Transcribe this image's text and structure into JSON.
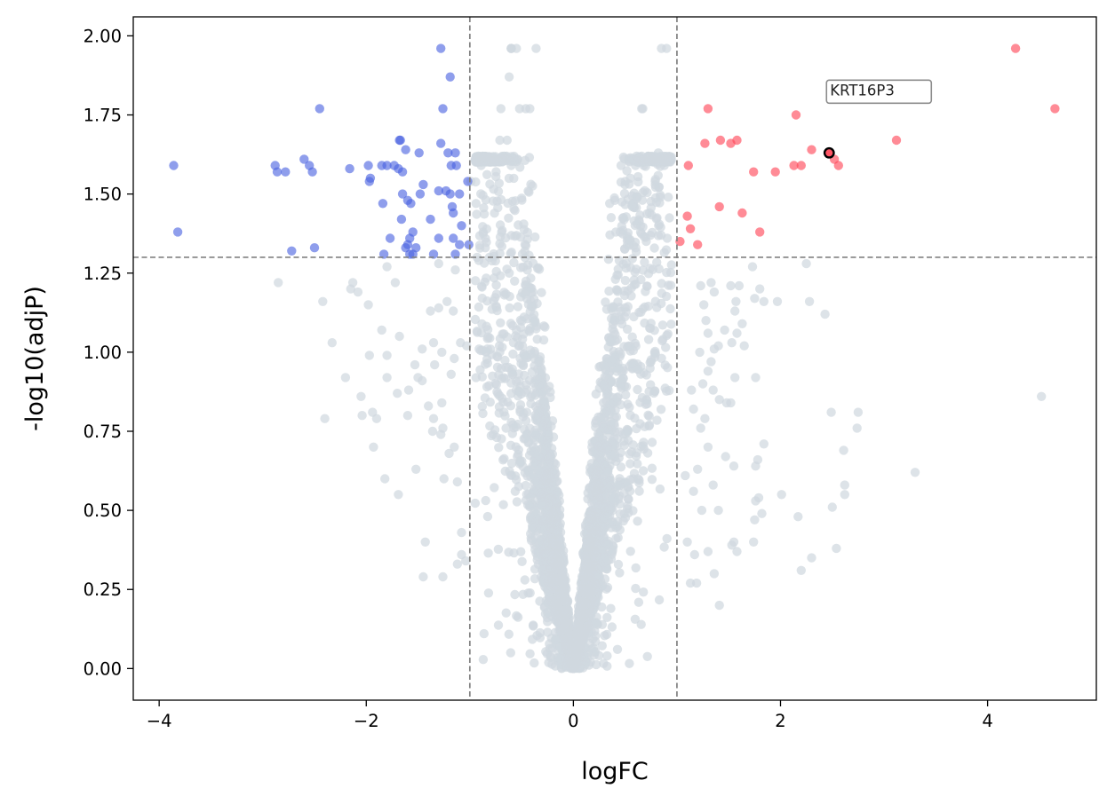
{
  "chart_data": {
    "type": "scatter",
    "title": "",
    "xlabel": "logFC",
    "ylabel": "-log10(adjP)",
    "xlim": [
      -4.25,
      5.05
    ],
    "ylim": [
      -0.1,
      2.06
    ],
    "xticks": [
      -4,
      -2,
      0,
      2,
      4
    ],
    "xtick_labels": [
      "−4",
      "−2",
      "0",
      "2",
      "4"
    ],
    "yticks": [
      0.0,
      0.25,
      0.5,
      0.75,
      1.0,
      1.25,
      1.5,
      1.75,
      2.0
    ],
    "ytick_labels": [
      "0.00",
      "0.25",
      "0.50",
      "0.75",
      "1.00",
      "1.25",
      "1.50",
      "1.75",
      "2.00"
    ],
    "thresholds": {
      "logfc": [
        -1,
        1
      ],
      "neg_log10_adjp": 1.3
    },
    "colors": {
      "up": "#ff4455",
      "down": "#4a63e0",
      "ns": "#d0d8df",
      "threshold_line": "#808080",
      "highlight_edge": "#000000"
    },
    "series": [
      {
        "name": "up",
        "points": [
          [
            4.27,
            1.96
          ],
          [
            4.65,
            1.77
          ],
          [
            1.3,
            1.77
          ],
          [
            2.15,
            1.75
          ],
          [
            3.12,
            1.67
          ],
          [
            1.42,
            1.67
          ],
          [
            1.58,
            1.67
          ],
          [
            1.27,
            1.66
          ],
          [
            1.52,
            1.66
          ],
          [
            2.3,
            1.64
          ],
          [
            2.52,
            1.61
          ],
          [
            2.56,
            1.59
          ],
          [
            1.11,
            1.59
          ],
          [
            2.13,
            1.59
          ],
          [
            2.2,
            1.59
          ],
          [
            1.74,
            1.57
          ],
          [
            1.95,
            1.57
          ],
          [
            1.41,
            1.46
          ],
          [
            1.63,
            1.44
          ],
          [
            1.1,
            1.43
          ],
          [
            1.13,
            1.39
          ],
          [
            1.8,
            1.38
          ],
          [
            1.03,
            1.35
          ],
          [
            1.2,
            1.34
          ]
        ]
      },
      {
        "name": "down",
        "points": [
          [
            -1.28,
            1.96
          ],
          [
            -1.19,
            1.87
          ],
          [
            -2.45,
            1.77
          ],
          [
            -1.26,
            1.77
          ],
          [
            -1.68,
            1.67
          ],
          [
            -1.67,
            1.67
          ],
          [
            -1.28,
            1.66
          ],
          [
            -1.21,
            1.63
          ],
          [
            -1.14,
            1.63
          ],
          [
            -1.62,
            1.64
          ],
          [
            -1.49,
            1.63
          ],
          [
            -2.6,
            1.61
          ],
          [
            -2.55,
            1.59
          ],
          [
            -3.86,
            1.59
          ],
          [
            -2.88,
            1.59
          ],
          [
            -1.85,
            1.59
          ],
          [
            -1.8,
            1.59
          ],
          [
            -1.73,
            1.59
          ],
          [
            -1.18,
            1.59
          ],
          [
            -1.13,
            1.59
          ],
          [
            -1.69,
            1.58
          ],
          [
            -2.16,
            1.58
          ],
          [
            -1.98,
            1.59
          ],
          [
            -2.86,
            1.57
          ],
          [
            -2.78,
            1.57
          ],
          [
            -2.52,
            1.57
          ],
          [
            -1.65,
            1.57
          ],
          [
            -1.96,
            1.55
          ],
          [
            -1.97,
            1.54
          ],
          [
            -1.45,
            1.53
          ],
          [
            -1.02,
            1.54
          ],
          [
            -1.23,
            1.51
          ],
          [
            -1.65,
            1.5
          ],
          [
            -1.19,
            1.5
          ],
          [
            -1.1,
            1.5
          ],
          [
            -1.3,
            1.51
          ],
          [
            -1.48,
            1.5
          ],
          [
            -1.6,
            1.48
          ],
          [
            -1.84,
            1.47
          ],
          [
            -1.57,
            1.47
          ],
          [
            -1.17,
            1.46
          ],
          [
            -1.16,
            1.44
          ],
          [
            -1.66,
            1.42
          ],
          [
            -1.38,
            1.42
          ],
          [
            -1.08,
            1.4
          ],
          [
            -1.55,
            1.38
          ],
          [
            -3.82,
            1.38
          ],
          [
            -1.77,
            1.36
          ],
          [
            -1.58,
            1.36
          ],
          [
            -1.3,
            1.36
          ],
          [
            -1.16,
            1.36
          ],
          [
            -1.1,
            1.34
          ],
          [
            -1.6,
            1.34
          ],
          [
            -1.01,
            1.34
          ],
          [
            -1.62,
            1.33
          ],
          [
            -2.5,
            1.33
          ],
          [
            -2.72,
            1.32
          ],
          [
            -1.55,
            1.31
          ],
          [
            -1.83,
            1.31
          ],
          [
            -1.35,
            1.31
          ],
          [
            -1.14,
            1.31
          ],
          [
            -1.58,
            1.31
          ],
          [
            -1.52,
            1.33
          ]
        ]
      },
      {
        "name": "ns",
        "generator": {
          "count": 4200,
          "x_range": [
            -1.0,
            1.0
          ],
          "seed": 7
        },
        "points": [
          [
            -0.55,
            1.96
          ],
          [
            -0.6,
            1.96
          ],
          [
            -0.6,
            1.96
          ],
          [
            -0.6,
            1.96
          ],
          [
            -0.36,
            1.96
          ],
          [
            -0.62,
            1.87
          ],
          [
            0.85,
            1.96
          ],
          [
            0.9,
            1.96
          ],
          [
            -0.7,
            1.77
          ],
          [
            -0.46,
            1.77
          ],
          [
            -0.42,
            1.77
          ],
          [
            -0.52,
            1.77
          ],
          [
            0.66,
            1.77
          ],
          [
            0.67,
            1.77
          ],
          [
            -0.71,
            1.67
          ],
          [
            -0.64,
            1.67
          ],
          [
            0.82,
            1.63
          ],
          [
            -0.6,
            1.59
          ],
          [
            -0.89,
            1.59
          ],
          [
            0.46,
            1.59
          ],
          [
            0.6,
            1.59
          ],
          [
            0.68,
            1.59
          ],
          [
            0.55,
            1.55
          ],
          [
            0.5,
            1.54
          ],
          [
            0.79,
            1.54
          ],
          [
            -0.99,
            1.54
          ],
          [
            -0.94,
            1.47
          ],
          [
            0.84,
            1.49
          ],
          [
            0.4,
            1.48
          ],
          [
            0.62,
            1.49
          ],
          [
            0.58,
            1.47
          ],
          [
            0.57,
            1.46
          ],
          [
            0.35,
            1.47
          ],
          [
            0.41,
            1.38
          ],
          [
            -0.93,
            1.3
          ],
          [
            -0.81,
            1.3
          ],
          [
            -0.85,
            1.33
          ],
          [
            -1.3,
            1.28
          ],
          [
            -1.22,
            1.16
          ],
          [
            -1.3,
            1.14
          ],
          [
            -1.16,
            1.13
          ],
          [
            -1.14,
            1.26
          ],
          [
            -1.38,
            1.13
          ],
          [
            -1.35,
            1.03
          ],
          [
            -1.46,
            1.01
          ],
          [
            -1.53,
            0.96
          ],
          [
            -1.09,
            1.03
          ],
          [
            -1.15,
            0.98
          ],
          [
            -1.03,
            1.02
          ],
          [
            -1.27,
            1.0
          ],
          [
            -1.34,
            0.96
          ],
          [
            -1.46,
            0.91
          ],
          [
            -1.5,
            0.92
          ],
          [
            -1.18,
            0.93
          ],
          [
            -1.27,
            0.84
          ],
          [
            -1.4,
            0.83
          ],
          [
            -1.6,
            0.8
          ],
          [
            -1.35,
            0.79
          ],
          [
            -1.26,
            0.76
          ],
          [
            -1.28,
            0.74
          ],
          [
            -1.36,
            0.75
          ],
          [
            -1.15,
            0.7
          ],
          [
            -1.2,
            0.68
          ],
          [
            -1.12,
            0.59
          ],
          [
            -1.25,
            0.6
          ],
          [
            -1.52,
            0.63
          ],
          [
            -1.43,
            0.4
          ],
          [
            -1.08,
            0.36
          ],
          [
            -1.12,
            0.33
          ],
          [
            -1.26,
            0.29
          ],
          [
            -1.45,
            0.29
          ],
          [
            -1.04,
            0.34
          ],
          [
            -1.08,
            0.43
          ],
          [
            -1.8,
            1.27
          ],
          [
            -1.85,
            1.07
          ],
          [
            -1.72,
            1.22
          ],
          [
            -1.68,
            1.05
          ],
          [
            -1.82,
            0.6
          ],
          [
            -1.69,
            0.55
          ],
          [
            -1.7,
            0.87
          ],
          [
            -1.59,
            0.88
          ],
          [
            -1.8,
            0.92
          ],
          [
            -1.9,
            0.79
          ],
          [
            -2.04,
            0.8
          ],
          [
            -2.05,
            0.86
          ],
          [
            -1.94,
            0.81
          ],
          [
            -1.93,
            0.7
          ],
          [
            -2.2,
            0.92
          ],
          [
            -2.13,
            1.22
          ],
          [
            -2.15,
            1.2
          ],
          [
            -2.08,
            1.19
          ],
          [
            -1.98,
            1.15
          ],
          [
            -2.4,
            0.79
          ],
          [
            -2.33,
            1.03
          ],
          [
            -2.42,
            1.16
          ],
          [
            -2.85,
            1.22
          ],
          [
            -1.97,
            0.99
          ],
          [
            -1.8,
            0.99
          ],
          [
            1.33,
            1.22
          ],
          [
            1.23,
            1.21
          ],
          [
            1.36,
            1.19
          ],
          [
            1.52,
            1.21
          ],
          [
            1.6,
            1.21
          ],
          [
            1.57,
            1.16
          ],
          [
            1.75,
            1.17
          ],
          [
            1.84,
            1.16
          ],
          [
            1.8,
            1.2
          ],
          [
            1.73,
            1.27
          ],
          [
            2.25,
            1.28
          ],
          [
            2.28,
            1.16
          ],
          [
            2.43,
            1.12
          ],
          [
            1.97,
            1.16
          ],
          [
            1.26,
            1.15
          ],
          [
            1.28,
            1.1
          ],
          [
            1.3,
            1.06
          ],
          [
            1.56,
            1.13
          ],
          [
            1.58,
            1.06
          ],
          [
            1.63,
            1.09
          ],
          [
            1.65,
            1.02
          ],
          [
            1.46,
            1.07
          ],
          [
            1.36,
            1.01
          ],
          [
            1.33,
            0.97
          ],
          [
            1.3,
            0.94
          ],
          [
            1.25,
            0.9
          ],
          [
            1.35,
            0.88
          ],
          [
            1.41,
            0.85
          ],
          [
            1.52,
            0.84
          ],
          [
            1.48,
            0.84
          ],
          [
            1.56,
            0.92
          ],
          [
            1.76,
            0.92
          ],
          [
            1.53,
            1.03
          ],
          [
            1.4,
            1.02
          ],
          [
            1.22,
            1.0
          ],
          [
            1.14,
            0.88
          ],
          [
            1.16,
            0.82
          ],
          [
            1.23,
            0.76
          ],
          [
            1.27,
            0.79
          ],
          [
            1.3,
            0.7
          ],
          [
            1.47,
            0.67
          ],
          [
            1.55,
            0.64
          ],
          [
            1.2,
            0.63
          ],
          [
            1.08,
            0.61
          ],
          [
            1.16,
            0.56
          ],
          [
            1.24,
            0.5
          ],
          [
            1.35,
            0.58
          ],
          [
            1.4,
            0.5
          ],
          [
            1.1,
            0.4
          ],
          [
            1.17,
            0.36
          ],
          [
            1.3,
            0.37
          ],
          [
            1.36,
            0.3
          ],
          [
            1.55,
            0.4
          ],
          [
            1.58,
            0.37
          ],
          [
            1.53,
            0.39
          ],
          [
            1.74,
            0.4
          ],
          [
            1.75,
            0.47
          ],
          [
            1.76,
            0.53
          ],
          [
            1.79,
            0.54
          ],
          [
            1.82,
            0.49
          ],
          [
            1.78,
            0.66
          ],
          [
            1.84,
            0.71
          ],
          [
            1.76,
            0.64
          ],
          [
            2.01,
            0.55
          ],
          [
            2.17,
            0.48
          ],
          [
            2.2,
            0.31
          ],
          [
            2.3,
            0.35
          ],
          [
            2.54,
            0.38
          ],
          [
            2.5,
            0.51
          ],
          [
            2.62,
            0.58
          ],
          [
            2.62,
            0.55
          ],
          [
            2.61,
            0.69
          ],
          [
            2.49,
            0.81
          ],
          [
            2.74,
            0.76
          ],
          [
            2.75,
            0.81
          ],
          [
            3.3,
            0.62
          ],
          [
            4.52,
            0.86
          ],
          [
            1.41,
            0.2
          ],
          [
            1.19,
            0.27
          ],
          [
            1.13,
            0.27
          ]
        ]
      }
    ],
    "highlight": {
      "label": "KRT16P3",
      "x": 2.47,
      "y": 1.63
    }
  }
}
